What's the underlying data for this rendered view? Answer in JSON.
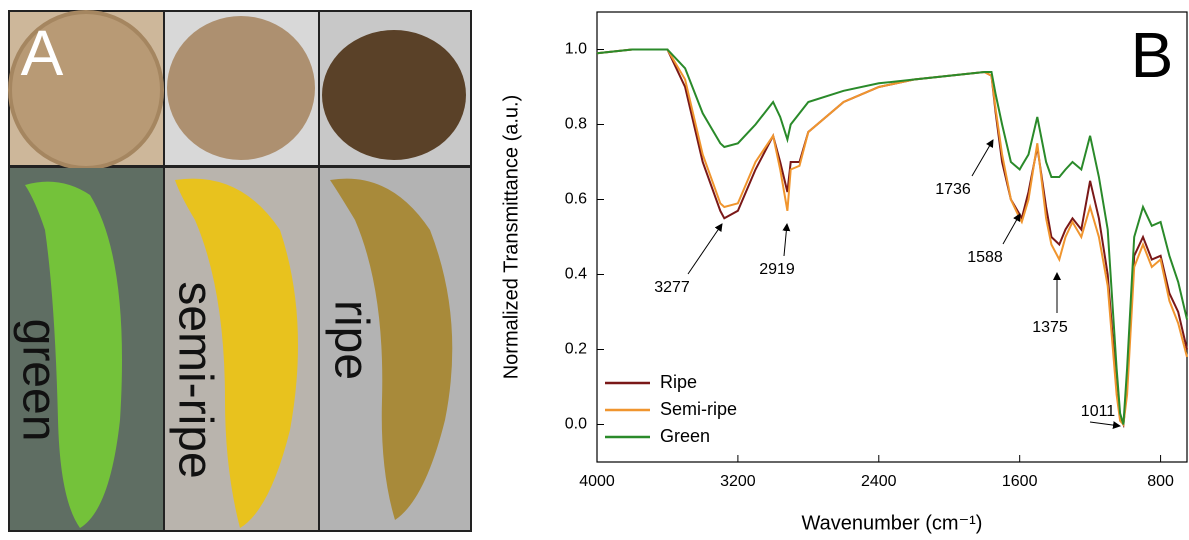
{
  "panel_a": {
    "label": "A",
    "photos": [
      "green",
      "semi-ripe",
      "ripe"
    ]
  },
  "chart_data": {
    "type": "line",
    "label": "B",
    "x_label": "Wavenumber (cm⁻¹)",
    "y_label": "Normalized Transmittance (a.u.)",
    "x": [
      4000,
      3800,
      3600,
      3500,
      3400,
      3300,
      3277,
      3200,
      3100,
      3000,
      2960,
      2919,
      2900,
      2850,
      2800,
      2600,
      2400,
      2200,
      2000,
      1800,
      1760,
      1736,
      1700,
      1650,
      1600,
      1588,
      1550,
      1500,
      1450,
      1420,
      1375,
      1340,
      1300,
      1250,
      1200,
      1150,
      1100,
      1050,
      1030,
      1011,
      990,
      950,
      900,
      850,
      800,
      750,
      700,
      650
    ],
    "series": [
      {
        "name": "Ripe",
        "color": "#7a1818",
        "values": [
          0.99,
          1.0,
          1.0,
          0.9,
          0.7,
          0.57,
          0.55,
          0.57,
          0.68,
          0.77,
          0.7,
          0.62,
          0.7,
          0.7,
          0.78,
          0.86,
          0.9,
          0.92,
          0.93,
          0.94,
          0.93,
          0.83,
          0.7,
          0.6,
          0.56,
          0.55,
          0.62,
          0.74,
          0.58,
          0.5,
          0.48,
          0.52,
          0.55,
          0.52,
          0.65,
          0.55,
          0.4,
          0.1,
          0.02,
          0.0,
          0.1,
          0.45,
          0.5,
          0.44,
          0.45,
          0.35,
          0.3,
          0.2
        ]
      },
      {
        "name": "Semi-ripe",
        "color": "#f0952e",
        "values": [
          0.99,
          1.0,
          1.0,
          0.92,
          0.72,
          0.59,
          0.58,
          0.59,
          0.7,
          0.77,
          0.68,
          0.57,
          0.68,
          0.69,
          0.78,
          0.86,
          0.9,
          0.92,
          0.93,
          0.94,
          0.93,
          0.84,
          0.72,
          0.6,
          0.55,
          0.54,
          0.6,
          0.75,
          0.55,
          0.48,
          0.44,
          0.5,
          0.54,
          0.5,
          0.58,
          0.5,
          0.37,
          0.08,
          0.01,
          0.0,
          0.08,
          0.42,
          0.48,
          0.42,
          0.44,
          0.33,
          0.27,
          0.18
        ]
      },
      {
        "name": "Green",
        "color": "#2a8a2a",
        "values": [
          0.99,
          1.0,
          1.0,
          0.95,
          0.83,
          0.75,
          0.74,
          0.75,
          0.8,
          0.86,
          0.82,
          0.76,
          0.8,
          0.83,
          0.86,
          0.89,
          0.91,
          0.92,
          0.93,
          0.94,
          0.94,
          0.88,
          0.8,
          0.7,
          0.68,
          0.69,
          0.72,
          0.82,
          0.7,
          0.66,
          0.66,
          0.68,
          0.7,
          0.68,
          0.77,
          0.66,
          0.52,
          0.15,
          0.03,
          0.0,
          0.15,
          0.5,
          0.58,
          0.53,
          0.54,
          0.45,
          0.38,
          0.28
        ]
      }
    ],
    "xlim": [
      4000,
      650
    ],
    "xticks": [
      4000,
      3200,
      2400,
      1600,
      800
    ],
    "ylim": [
      -0.1,
      1.1
    ],
    "yticks": [
      {
        "value": 0,
        "label": "0.0"
      },
      {
        "value": 0.2,
        "label": "0.2"
      },
      {
        "value": 0.4,
        "label": "0.4"
      },
      {
        "value": 0.6,
        "label": "0.6"
      },
      {
        "value": 0.8,
        "label": "0.8"
      },
      {
        "value": 1,
        "label": "1.0"
      }
    ],
    "annotations": [
      "3277",
      "2919",
      "1736",
      "1588",
      "1375",
      "1011"
    ],
    "legend": "lower left",
    "grid": false
  }
}
